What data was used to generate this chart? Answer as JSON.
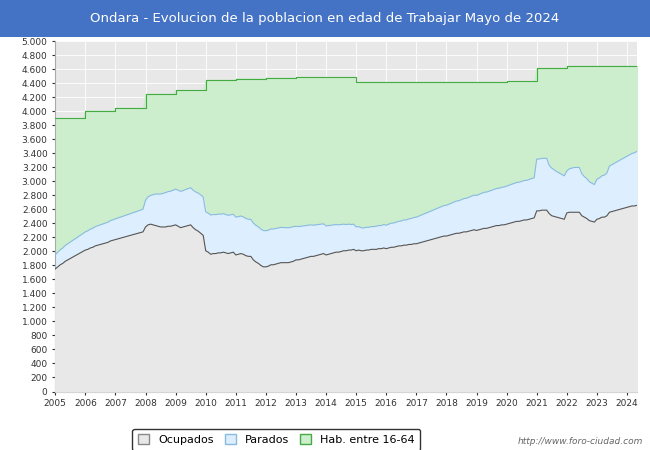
{
  "title": "Ondara - Evolucion de la poblacion en edad de Trabajar Mayo de 2024",
  "title_color": "white",
  "title_bg_color": "#4472C4",
  "ylim": [
    0,
    5000
  ],
  "yticks": [
    0,
    200,
    400,
    600,
    800,
    1000,
    1200,
    1400,
    1600,
    1800,
    2000,
    2200,
    2400,
    2600,
    2800,
    3000,
    3200,
    3400,
    3600,
    3800,
    4000,
    4200,
    4400,
    4600,
    4800,
    5000
  ],
  "watermark": "http://www.foro-ciudad.com",
  "background_plot": "#E8E8E8",
  "grid_color": "white",
  "hab_color": "#CCEECC",
  "hab_line_color": "#44AA44",
  "parados_fill_color": "#DDEEFF",
  "parados_line_color": "#88BBDD",
  "ocupados_line_color": "#555555",
  "years_xticks": [
    2005,
    2006,
    2007,
    2008,
    2009,
    2010,
    2011,
    2012,
    2013,
    2014,
    2015,
    2016,
    2017,
    2018,
    2019,
    2020,
    2021,
    2022,
    2023,
    2024
  ],
  "hab_annual": [
    3900,
    4010,
    4050,
    4250,
    4300,
    4450,
    4470,
    4480,
    4490,
    4490,
    4420,
    4420,
    4420,
    4420,
    4420,
    4430,
    4620,
    4650,
    4650,
    4650
  ],
  "ocupados_monthly": [
    1750,
    1780,
    1810,
    1830,
    1860,
    1880,
    1900,
    1920,
    1940,
    1960,
    1980,
    2000,
    2020,
    2030,
    2050,
    2060,
    2080,
    2090,
    2100,
    2110,
    2120,
    2130,
    2150,
    2160,
    2170,
    2180,
    2190,
    2200,
    2210,
    2220,
    2230,
    2240,
    2250,
    2260,
    2270,
    2280,
    2350,
    2380,
    2390,
    2380,
    2370,
    2360,
    2350,
    2350,
    2350,
    2360,
    2360,
    2370,
    2380,
    2360,
    2340,
    2350,
    2360,
    2370,
    2380,
    2340,
    2310,
    2290,
    2260,
    2230,
    2010,
    1990,
    1960,
    1970,
    1970,
    1980,
    1980,
    1990,
    1980,
    1970,
    1980,
    1990,
    1950,
    1960,
    1970,
    1960,
    1940,
    1930,
    1930,
    1880,
    1850,
    1830,
    1800,
    1780,
    1780,
    1790,
    1810,
    1810,
    1820,
    1830,
    1840,
    1840,
    1840,
    1840,
    1850,
    1860,
    1880,
    1880,
    1890,
    1900,
    1910,
    1920,
    1930,
    1930,
    1940,
    1950,
    1960,
    1970,
    1950,
    1960,
    1970,
    1980,
    1990,
    1990,
    2000,
    2010,
    2010,
    2020,
    2020,
    2030,
    2010,
    2020,
    2010,
    2010,
    2020,
    2020,
    2030,
    2030,
    2030,
    2040,
    2040,
    2050,
    2040,
    2050,
    2060,
    2060,
    2070,
    2080,
    2080,
    2090,
    2090,
    2100,
    2100,
    2110,
    2110,
    2120,
    2130,
    2140,
    2150,
    2160,
    2170,
    2180,
    2190,
    2200,
    2210,
    2220,
    2220,
    2230,
    2240,
    2250,
    2260,
    2260,
    2270,
    2280,
    2280,
    2290,
    2300,
    2310,
    2300,
    2310,
    2320,
    2330,
    2330,
    2340,
    2350,
    2360,
    2370,
    2370,
    2380,
    2380,
    2390,
    2400,
    2410,
    2420,
    2430,
    2430,
    2440,
    2450,
    2450,
    2460,
    2470,
    2480,
    2580,
    2580,
    2590,
    2590,
    2590,
    2540,
    2510,
    2500,
    2490,
    2480,
    2470,
    2460,
    2550,
    2560,
    2560,
    2560,
    2560,
    2560,
    2510,
    2490,
    2470,
    2440,
    2430,
    2420,
    2460,
    2470,
    2490,
    2490,
    2510,
    2560,
    2570,
    2580,
    2590,
    2600,
    2610,
    2620,
    2630,
    2640,
    2650,
    2650,
    2660
  ],
  "parados_monthly": [
    200,
    210,
    215,
    220,
    225,
    230,
    235,
    238,
    242,
    246,
    250,
    255,
    260,
    265,
    268,
    272,
    275,
    278,
    280,
    283,
    285,
    288,
    290,
    293,
    295,
    298,
    300,
    302,
    305,
    308,
    310,
    313,
    315,
    318,
    320,
    325,
    380,
    400,
    410,
    430,
    450,
    460,
    470,
    480,
    490,
    495,
    500,
    505,
    510,
    515,
    518,
    520,
    525,
    528,
    530,
    535,
    540,
    545,
    548,
    550,
    555,
    558,
    560,
    558,
    556,
    554,
    552,
    550,
    548,
    546,
    544,
    542,
    540,
    538,
    536,
    534,
    532,
    530,
    528,
    526,
    524,
    522,
    520,
    518,
    516,
    514,
    512,
    510,
    508,
    506,
    504,
    502,
    500,
    498,
    496,
    494,
    480,
    475,
    470,
    465,
    460,
    455,
    450,
    445,
    440,
    435,
    430,
    425,
    415,
    410,
    405,
    400,
    395,
    390,
    385,
    380,
    375,
    370,
    365,
    360,
    340,
    335,
    330,
    325,
    325,
    325,
    325,
    325,
    330,
    330,
    330,
    335,
    335,
    340,
    345,
    345,
    350,
    350,
    355,
    360,
    360,
    365,
    370,
    375,
    380,
    385,
    390,
    395,
    400,
    405,
    410,
    415,
    420,
    425,
    430,
    435,
    440,
    445,
    450,
    455,
    460,
    465,
    470,
    475,
    480,
    485,
    490,
    495,
    500,
    505,
    510,
    515,
    518,
    520,
    523,
    526,
    530,
    533,
    536,
    540,
    543,
    546,
    549,
    552,
    555,
    558,
    560,
    563,
    566,
    568,
    570,
    572,
    740,
    740,
    740,
    740,
    740,
    690,
    680,
    665,
    650,
    640,
    630,
    620,
    600,
    620,
    630,
    640,
    640,
    640,
    600,
    580,
    570,
    555,
    545,
    535,
    570,
    580,
    590,
    600,
    610,
    660,
    670,
    680,
    690,
    700,
    710,
    720,
    730,
    740,
    750,
    760,
    770
  ]
}
